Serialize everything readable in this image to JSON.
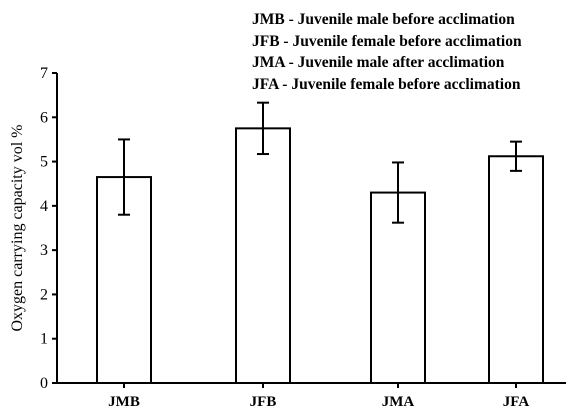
{
  "chart_data": {
    "type": "bar",
    "categories": [
      "JMB",
      "JFB",
      "JMA",
      "JFA"
    ],
    "values": [
      4.65,
      5.75,
      4.3,
      5.12
    ],
    "errors": [
      0.85,
      0.58,
      0.68,
      0.33
    ],
    "ylabel": "Oxygen carrying capacity vol %",
    "ylim": [
      0,
      7
    ],
    "yticks": [
      "0",
      "1",
      "2",
      "3",
      "4",
      "5",
      "6",
      "7"
    ],
    "legend": [
      "JMB - Juvenile male before acclimation",
      "JFB  - Juvenile female before acclimation",
      "JMA - Juvenile male after acclimation",
      "JFA  - Juvenile female before acclimation"
    ],
    "legend_position": "top-right",
    "grid": false,
    "bar_fill": "#ffffff",
    "bar_stroke": "#000000"
  }
}
